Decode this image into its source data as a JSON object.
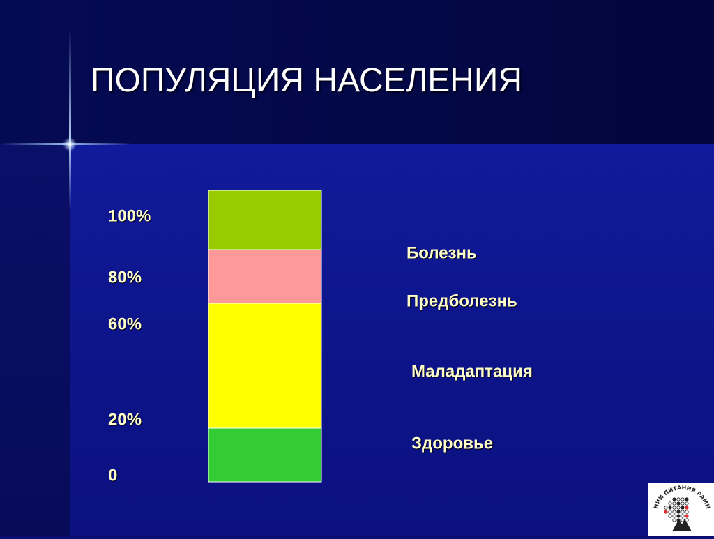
{
  "title": "ПОПУЛЯЦИЯ НАСЕЛЕНИЯ",
  "chart_data": {
    "type": "bar",
    "orientation": "vertical-stacked",
    "axis_labels": [
      {
        "label": "100%",
        "value": 100
      },
      {
        "label": "80%",
        "value": 80
      },
      {
        "label": "60%",
        "value": 60
      },
      {
        "label": "20%",
        "value": 20
      },
      {
        "label": "0",
        "value": 0
      }
    ],
    "series": [
      {
        "name": "Здоровье",
        "from": 0,
        "to": 20,
        "color": "#33cc33"
      },
      {
        "name": "Маладаптация",
        "from": 20,
        "to": 60,
        "color": "#ffff00"
      },
      {
        "name": "Предболезнь",
        "from": 60,
        "to": 80,
        "color": "#ff9999"
      },
      {
        "name": "Болезнь",
        "from": 80,
        "to": 100,
        "color": "#99cc00"
      }
    ],
    "ylim": [
      0,
      100
    ],
    "legend_position": "right"
  },
  "logo": {
    "text": "НИИ ПИТАНИЯ РАМН",
    "icon": "tree-of-circles-logo"
  }
}
